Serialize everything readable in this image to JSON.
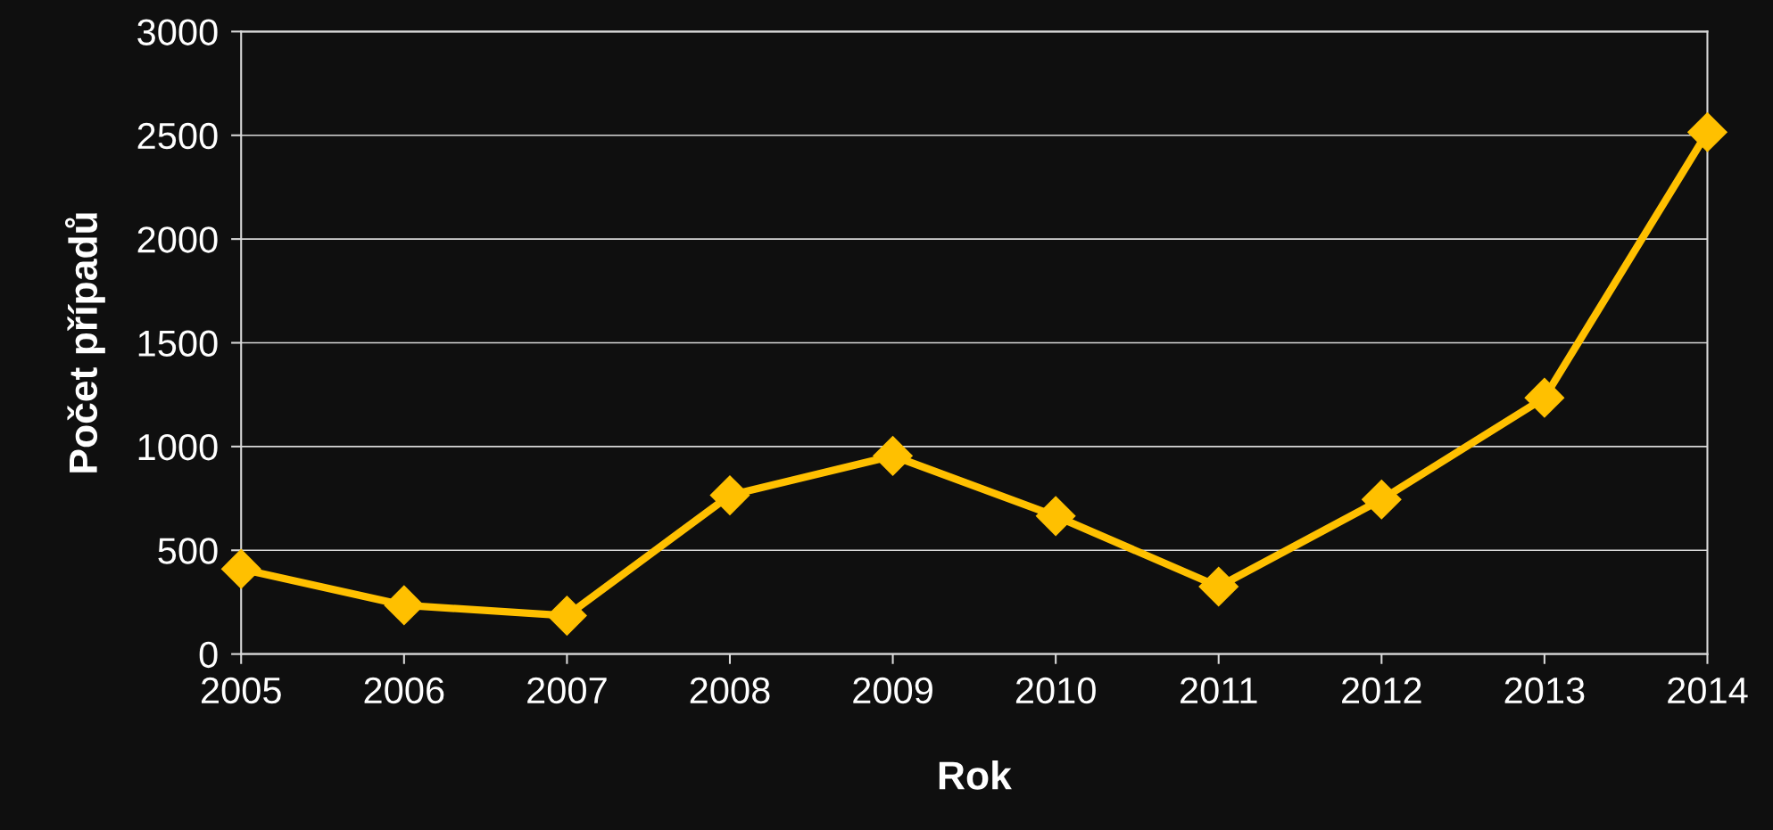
{
  "chart_data": {
    "type": "line",
    "xlabel": "Rok",
    "ylabel": "Počet případů",
    "x": [
      2005,
      2006,
      2007,
      2008,
      2009,
      2010,
      2011,
      2012,
      2013,
      2014
    ],
    "series": [
      {
        "color": "#ffc000",
        "values": [
          410,
          235,
          185,
          765,
          955,
          665,
          325,
          745,
          1235,
          2515
        ]
      }
    ],
    "xlim": [
      2005,
      2014
    ],
    "xticks": [
      2005,
      2006,
      2007,
      2008,
      2009,
      2010,
      2011,
      2012,
      2013,
      2014
    ],
    "ylim": [
      0,
      3000
    ],
    "yticks": [
      0,
      500,
      1000,
      1500,
      2000,
      2500,
      3000
    ],
    "grid": "y",
    "marker": "diamond",
    "line_style": "solid"
  }
}
